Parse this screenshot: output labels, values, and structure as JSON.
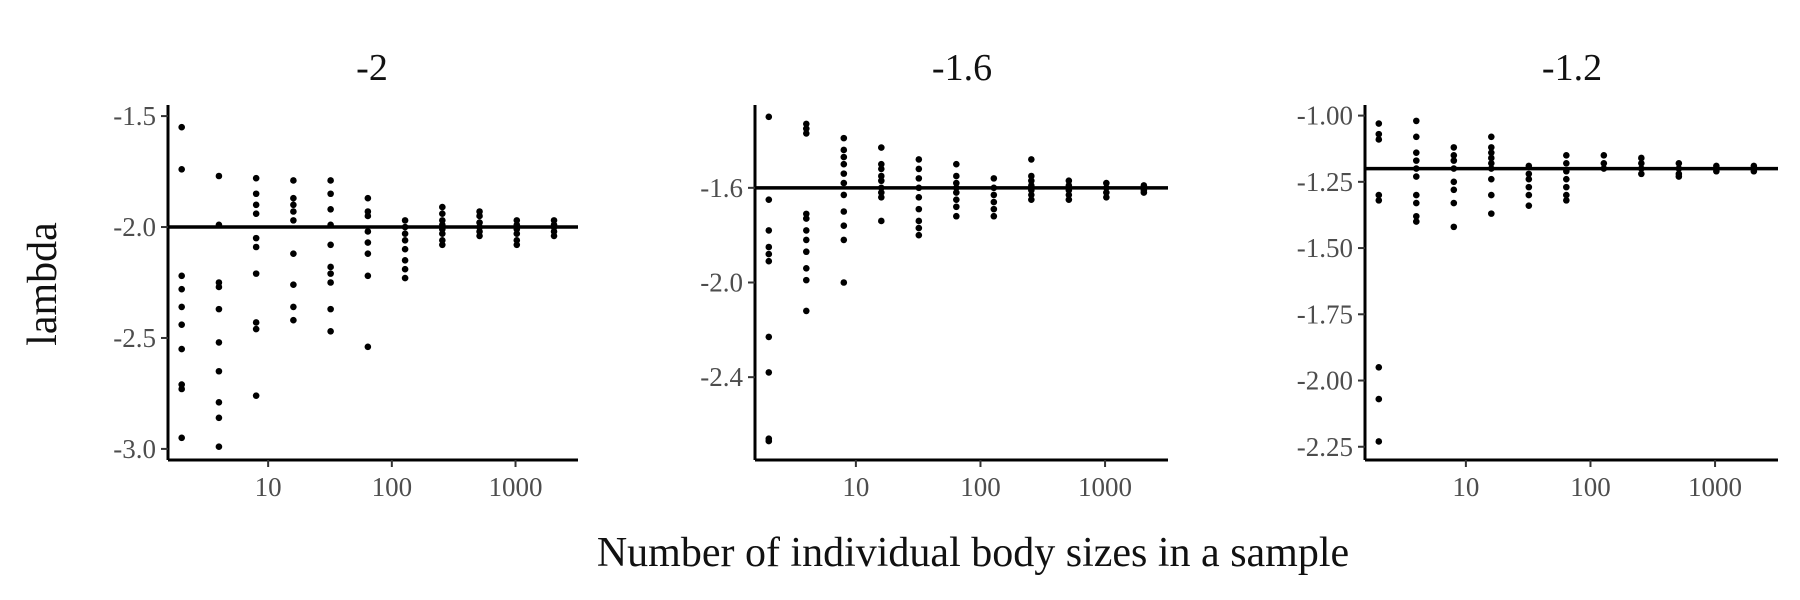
{
  "chart_data": {
    "type": "scatter",
    "xlabel": "Number of individual body sizes in a sample",
    "ylabel": "lambda",
    "x_scale": "log",
    "grid": false,
    "legend": "none",
    "panels": [
      {
        "title": "-2",
        "reference_line": -2.0,
        "xlim": [
          1.55,
          3200
        ],
        "ylim": [
          -3.05,
          -1.45
        ],
        "x_ticks": [
          10,
          100,
          1000
        ],
        "x_tick_labels": [
          "10",
          "100",
          "1000"
        ],
        "y_ticks": [
          -3.0,
          -2.5,
          -2.0,
          -1.5
        ],
        "y_tick_labels": [
          "-3.0",
          "-2.5",
          "-2.0",
          "-1.5"
        ],
        "points": [
          [
            2,
            -1.55
          ],
          [
            2,
            -1.74
          ],
          [
            2,
            -2.22
          ],
          [
            2,
            -2.28
          ],
          [
            2,
            -2.36
          ],
          [
            2,
            -2.44
          ],
          [
            2,
            -2.55
          ],
          [
            2,
            -2.71
          ],
          [
            2,
            -2.73
          ],
          [
            2,
            -2.95
          ],
          [
            4,
            -1.77
          ],
          [
            4,
            -1.99
          ],
          [
            4,
            -2.25
          ],
          [
            4,
            -2.27
          ],
          [
            4,
            -2.37
          ],
          [
            4,
            -2.52
          ],
          [
            4,
            -2.65
          ],
          [
            4,
            -2.79
          ],
          [
            4,
            -2.86
          ],
          [
            4,
            -2.99
          ],
          [
            8,
            -1.78
          ],
          [
            8,
            -1.85
          ],
          [
            8,
            -1.9
          ],
          [
            8,
            -1.94
          ],
          [
            8,
            -2.05
          ],
          [
            8,
            -2.09
          ],
          [
            8,
            -2.21
          ],
          [
            8,
            -2.43
          ],
          [
            8,
            -2.46
          ],
          [
            8,
            -2.76
          ],
          [
            16,
            -1.79
          ],
          [
            16,
            -1.87
          ],
          [
            16,
            -1.9
          ],
          [
            16,
            -1.93
          ],
          [
            16,
            -1.97
          ],
          [
            16,
            -2.12
          ],
          [
            16,
            -2.26
          ],
          [
            16,
            -2.36
          ],
          [
            16,
            -2.42
          ],
          [
            32,
            -1.79
          ],
          [
            32,
            -1.85
          ],
          [
            32,
            -1.92
          ],
          [
            32,
            -1.99
          ],
          [
            32,
            -2.08
          ],
          [
            32,
            -2.18
          ],
          [
            32,
            -2.21
          ],
          [
            32,
            -2.25
          ],
          [
            32,
            -2.37
          ],
          [
            32,
            -2.47
          ],
          [
            64,
            -1.87
          ],
          [
            64,
            -1.93
          ],
          [
            64,
            -1.95
          ],
          [
            64,
            -2.02
          ],
          [
            64,
            -2.07
          ],
          [
            64,
            -2.12
          ],
          [
            64,
            -2.22
          ],
          [
            64,
            -2.54
          ],
          [
            128,
            -1.97
          ],
          [
            128,
            -2.0
          ],
          [
            128,
            -2.03
          ],
          [
            128,
            -2.06
          ],
          [
            128,
            -2.1
          ],
          [
            128,
            -2.15
          ],
          [
            128,
            -2.19
          ],
          [
            128,
            -2.23
          ],
          [
            256,
            -1.91
          ],
          [
            256,
            -1.94
          ],
          [
            256,
            -1.97
          ],
          [
            256,
            -1.99
          ],
          [
            256,
            -2.01
          ],
          [
            256,
            -2.03
          ],
          [
            256,
            -2.06
          ],
          [
            256,
            -2.08
          ],
          [
            512,
            -1.93
          ],
          [
            512,
            -1.95
          ],
          [
            512,
            -1.98
          ],
          [
            512,
            -2.0
          ],
          [
            512,
            -2.02
          ],
          [
            512,
            -2.04
          ],
          [
            1024,
            -1.97
          ],
          [
            1024,
            -1.99
          ],
          [
            1024,
            -2.01
          ],
          [
            1024,
            -2.03
          ],
          [
            1024,
            -2.06
          ],
          [
            1024,
            -2.08
          ],
          [
            2048,
            -1.97
          ],
          [
            2048,
            -1.99
          ],
          [
            2048,
            -2.0
          ],
          [
            2048,
            -2.02
          ],
          [
            2048,
            -2.04
          ]
        ]
      },
      {
        "title": "-1.6",
        "reference_line": -1.6,
        "xlim": [
          1.55,
          3200
        ],
        "ylim": [
          -2.75,
          -1.25
        ],
        "x_ticks": [
          10,
          100,
          1000
        ],
        "x_tick_labels": [
          "10",
          "100",
          "1000"
        ],
        "y_ticks": [
          -2.4,
          -2.0,
          -1.6
        ],
        "y_tick_labels": [
          "-2.4",
          "-2.0",
          "-1.6"
        ],
        "points": [
          [
            2,
            -1.3
          ],
          [
            2,
            -1.65
          ],
          [
            2,
            -1.78
          ],
          [
            2,
            -1.85
          ],
          [
            2,
            -1.88
          ],
          [
            2,
            -1.91
          ],
          [
            2,
            -2.23
          ],
          [
            2,
            -2.38
          ],
          [
            2,
            -2.66
          ],
          [
            2,
            -2.67
          ],
          [
            4,
            -1.33
          ],
          [
            4,
            -1.35
          ],
          [
            4,
            -1.37
          ],
          [
            4,
            -1.71
          ],
          [
            4,
            -1.73
          ],
          [
            4,
            -1.78
          ],
          [
            4,
            -1.82
          ],
          [
            4,
            -1.87
          ],
          [
            4,
            -1.94
          ],
          [
            4,
            -1.99
          ],
          [
            4,
            -2.12
          ],
          [
            8,
            -1.39
          ],
          [
            8,
            -1.44
          ],
          [
            8,
            -1.47
          ],
          [
            8,
            -1.5
          ],
          [
            8,
            -1.54
          ],
          [
            8,
            -1.58
          ],
          [
            8,
            -1.63
          ],
          [
            8,
            -1.7
          ],
          [
            8,
            -1.76
          ],
          [
            8,
            -1.82
          ],
          [
            8,
            -2.0
          ],
          [
            16,
            -1.43
          ],
          [
            16,
            -1.5
          ],
          [
            16,
            -1.52
          ],
          [
            16,
            -1.55
          ],
          [
            16,
            -1.57
          ],
          [
            16,
            -1.6
          ],
          [
            16,
            -1.62
          ],
          [
            16,
            -1.64
          ],
          [
            16,
            -1.74
          ],
          [
            32,
            -1.48
          ],
          [
            32,
            -1.52
          ],
          [
            32,
            -1.56
          ],
          [
            32,
            -1.6
          ],
          [
            32,
            -1.64
          ],
          [
            32,
            -1.69
          ],
          [
            32,
            -1.74
          ],
          [
            32,
            -1.77
          ],
          [
            32,
            -1.8
          ],
          [
            64,
            -1.5
          ],
          [
            64,
            -1.55
          ],
          [
            64,
            -1.58
          ],
          [
            64,
            -1.6
          ],
          [
            64,
            -1.62
          ],
          [
            64,
            -1.65
          ],
          [
            64,
            -1.68
          ],
          [
            64,
            -1.72
          ],
          [
            128,
            -1.56
          ],
          [
            128,
            -1.6
          ],
          [
            128,
            -1.63
          ],
          [
            128,
            -1.66
          ],
          [
            128,
            -1.69
          ],
          [
            128,
            -1.72
          ],
          [
            256,
            -1.48
          ],
          [
            256,
            -1.55
          ],
          [
            256,
            -1.57
          ],
          [
            256,
            -1.59
          ],
          [
            256,
            -1.61
          ],
          [
            256,
            -1.63
          ],
          [
            256,
            -1.65
          ],
          [
            512,
            -1.57
          ],
          [
            512,
            -1.59
          ],
          [
            512,
            -1.61
          ],
          [
            512,
            -1.63
          ],
          [
            512,
            -1.65
          ],
          [
            1024,
            -1.58
          ],
          [
            1024,
            -1.6
          ],
          [
            1024,
            -1.62
          ],
          [
            1024,
            -1.64
          ],
          [
            2048,
            -1.59
          ],
          [
            2048,
            -1.6
          ],
          [
            2048,
            -1.61
          ],
          [
            2048,
            -1.62
          ]
        ]
      },
      {
        "title": "-1.2",
        "reference_line": -1.2,
        "xlim": [
          1.55,
          3200
        ],
        "ylim": [
          -2.3,
          -0.96
        ],
        "x_ticks": [
          10,
          100,
          1000
        ],
        "x_tick_labels": [
          "10",
          "100",
          "1000"
        ],
        "y_ticks": [
          -2.25,
          -2.0,
          -1.75,
          -1.5,
          -1.25,
          -1.0
        ],
        "y_tick_labels": [
          "-2.25",
          "-2.00",
          "-1.75",
          "-1.50",
          "-1.25",
          "-1.00"
        ],
        "points": [
          [
            2,
            -1.03
          ],
          [
            2,
            -1.07
          ],
          [
            2,
            -1.09
          ],
          [
            2,
            -1.3
          ],
          [
            2,
            -1.32
          ],
          [
            2,
            -1.95
          ],
          [
            2,
            -2.07
          ],
          [
            2,
            -2.23
          ],
          [
            4,
            -1.02
          ],
          [
            4,
            -1.08
          ],
          [
            4,
            -1.14
          ],
          [
            4,
            -1.17
          ],
          [
            4,
            -1.2
          ],
          [
            4,
            -1.23
          ],
          [
            4,
            -1.3
          ],
          [
            4,
            -1.33
          ],
          [
            4,
            -1.38
          ],
          [
            4,
            -1.4
          ],
          [
            8,
            -1.12
          ],
          [
            8,
            -1.15
          ],
          [
            8,
            -1.17
          ],
          [
            8,
            -1.2
          ],
          [
            8,
            -1.25
          ],
          [
            8,
            -1.28
          ],
          [
            8,
            -1.33
          ],
          [
            8,
            -1.42
          ],
          [
            16,
            -1.08
          ],
          [
            16,
            -1.12
          ],
          [
            16,
            -1.14
          ],
          [
            16,
            -1.16
          ],
          [
            16,
            -1.18
          ],
          [
            16,
            -1.2
          ],
          [
            16,
            -1.24
          ],
          [
            16,
            -1.3
          ],
          [
            16,
            -1.37
          ],
          [
            32,
            -1.19
          ],
          [
            32,
            -1.22
          ],
          [
            32,
            -1.24
          ],
          [
            32,
            -1.27
          ],
          [
            32,
            -1.3
          ],
          [
            32,
            -1.34
          ],
          [
            64,
            -1.15
          ],
          [
            64,
            -1.18
          ],
          [
            64,
            -1.21
          ],
          [
            64,
            -1.24
          ],
          [
            64,
            -1.27
          ],
          [
            64,
            -1.3
          ],
          [
            64,
            -1.32
          ],
          [
            128,
            -1.15
          ],
          [
            128,
            -1.18
          ],
          [
            128,
            -1.2
          ],
          [
            256,
            -1.16
          ],
          [
            256,
            -1.18
          ],
          [
            256,
            -1.2
          ],
          [
            256,
            -1.22
          ],
          [
            512,
            -1.18
          ],
          [
            512,
            -1.2
          ],
          [
            512,
            -1.22
          ],
          [
            512,
            -1.23
          ],
          [
            1024,
            -1.19
          ],
          [
            1024,
            -1.2
          ],
          [
            1024,
            -1.21
          ],
          [
            2048,
            -1.19
          ],
          [
            2048,
            -1.2
          ],
          [
            2048,
            -1.21
          ]
        ]
      }
    ]
  }
}
